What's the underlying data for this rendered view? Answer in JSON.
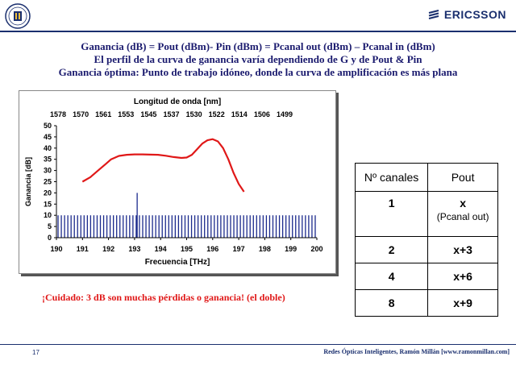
{
  "header": {
    "logo_text": "ERICSSON"
  },
  "titles": {
    "line1": "Ganancia (dB) = Pout (dBm)- Pin (dBm) = Pcanal out (dBm) – Pcanal in (dBm)",
    "line2": "El perfil de la curva de ganancia varía dependiendo de G y de Pout & Pin",
    "line3": "Ganancia óptima: Punto de trabajo idóneo, donde la curva de amplificación es más plana"
  },
  "chart_data": {
    "type": "line",
    "top_axis_label": "Longitud de onda [nm]",
    "top_ticks": [
      "1578",
      "1570",
      "1561",
      "1553",
      "1545",
      "1537",
      "1530",
      "1522",
      "1514",
      "1506",
      "1499"
    ],
    "xlabel": "Frecuencia [THz]",
    "ylabel": "Ganancia [dB]",
    "xlim": [
      190,
      200
    ],
    "ylim": [
      0,
      50
    ],
    "x_ticks": [
      "190",
      "191",
      "192",
      "193",
      "194",
      "195",
      "196",
      "197",
      "198",
      "199",
      "200"
    ],
    "y_ticks": [
      "0",
      "5",
      "10",
      "15",
      "20",
      "25",
      "30",
      "35",
      "40",
      "45",
      "50"
    ],
    "series": [
      {
        "x": [
          191.0,
          191.3,
          191.6,
          191.9,
          192.1,
          192.4,
          192.7,
          193.0,
          193.3,
          193.6,
          193.9,
          194.2,
          194.5,
          194.8,
          195.0,
          195.2,
          195.4,
          195.6,
          195.8,
          196.0,
          196.2,
          196.4,
          196.6,
          196.8,
          197.0,
          197.2
        ],
        "y": [
          25,
          27,
          30,
          33,
          35,
          36.5,
          37,
          37.2,
          37.2,
          37.1,
          37,
          36.6,
          36,
          35.6,
          35.8,
          37,
          39.5,
          42,
          43.5,
          44,
          43,
          40,
          35,
          29,
          24,
          20.5
        ]
      }
    ],
    "channel_bars": {
      "count": 80,
      "x_start": 190,
      "x_end": 200,
      "level": 10,
      "peak_x": 193.1,
      "peak_value": 20
    }
  },
  "warning": "¡Cuidado: 3 dB son muchas pérdidas o ganancia! (el doble)",
  "table": {
    "headers": [
      "Nº canales",
      "Pout"
    ],
    "rows": [
      {
        "canales": "1",
        "pout": "x",
        "pout_sub": "(Pcanal out)"
      },
      {
        "canales": "2",
        "pout": "x+3"
      },
      {
        "canales": "4",
        "pout": "x+6"
      },
      {
        "canales": "8",
        "pout": "x+9"
      }
    ]
  },
  "footer": {
    "page": "17",
    "credit": "Redes Ópticas Inteligentes, Ramón Millán [www.ramonmillan.com]"
  },
  "colors": {
    "accent": "#1a2f6e",
    "curve": "#e01818",
    "bars": "#1b2a8c",
    "warning": "#e01818"
  }
}
